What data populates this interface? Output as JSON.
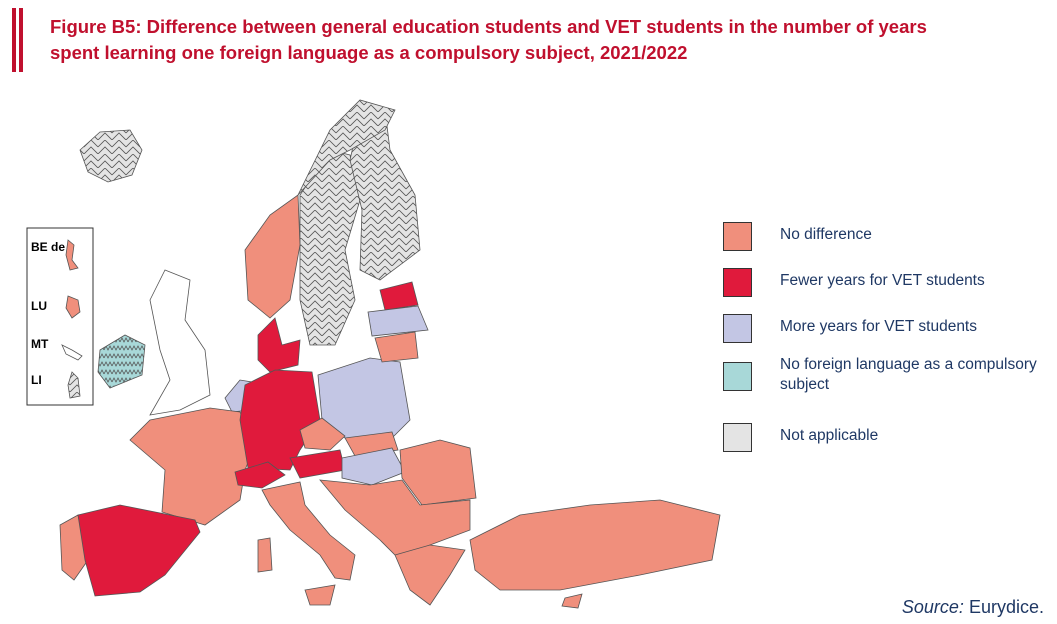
{
  "header": {
    "title_lines": [
      "Figure B5: Difference between general education students and VET students in the number of years",
      "spent learning one foreign language as a compulsory subject, 2021/2022"
    ]
  },
  "inset": {
    "labels": [
      "BE de",
      "LU",
      "MT",
      "LI"
    ]
  },
  "legend": {
    "items": [
      "No difference",
      "Fewer years for VET students",
      "More years for VET students",
      "No foreign language as a compulsory subject",
      "Not applicable"
    ]
  },
  "source": {
    "label": "Source:",
    "text": "Eurydice."
  }
}
